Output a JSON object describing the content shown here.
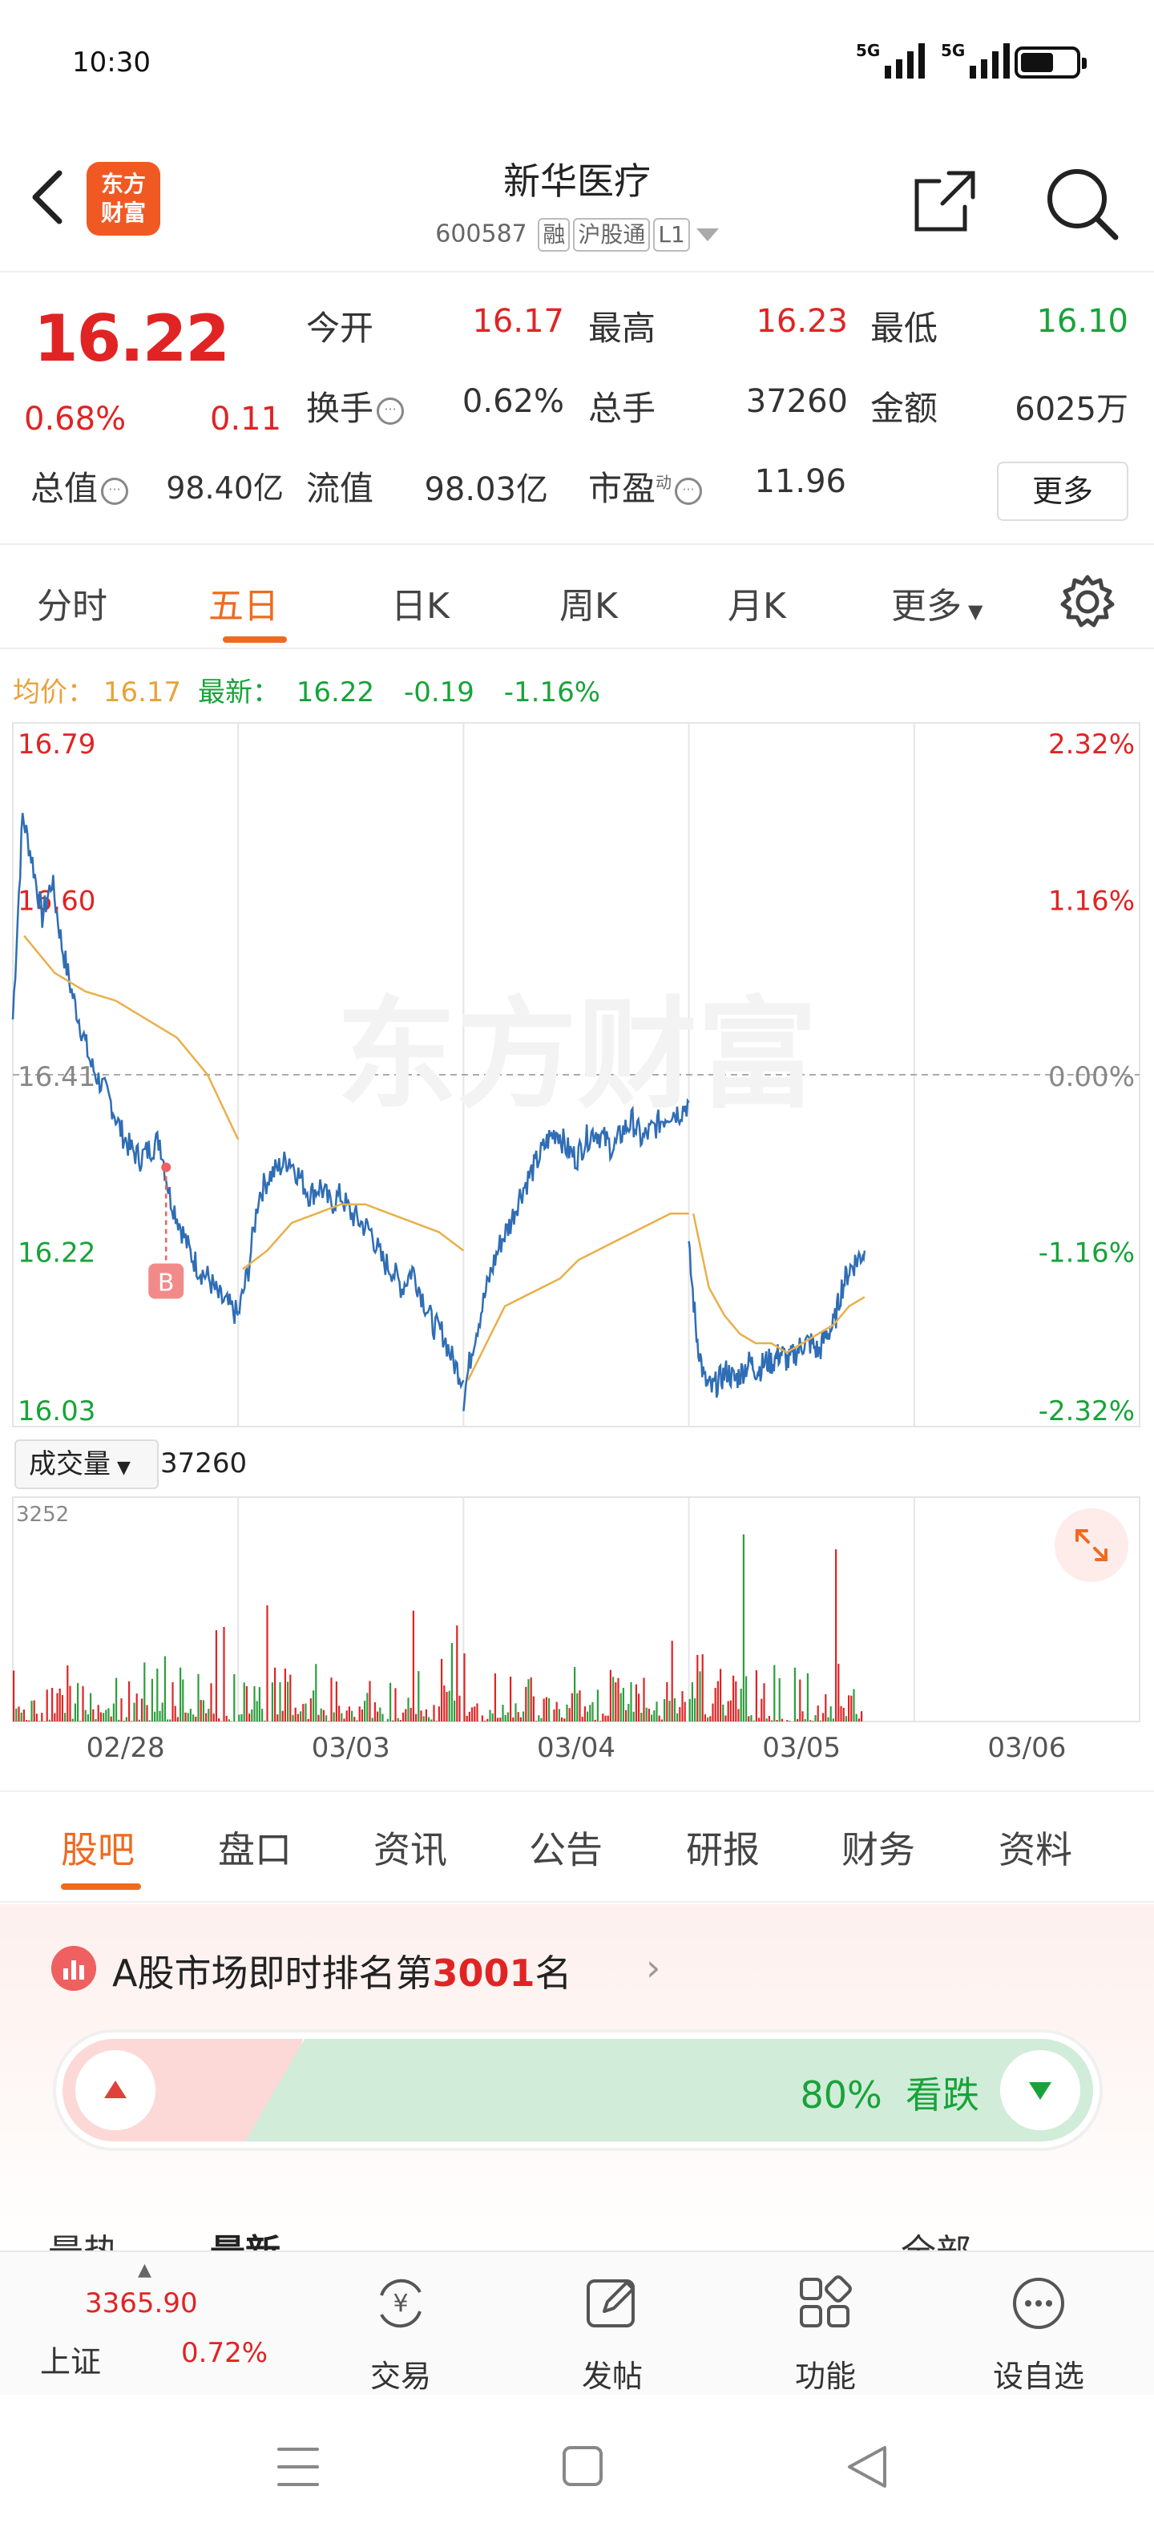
{
  "status": {
    "time": "10:30",
    "network1": "5G",
    "network2": "5G"
  },
  "header": {
    "logo_line1": "东方",
    "logo_line2": "财富",
    "title": "新华医疗",
    "code": "600587",
    "tags": [
      "融",
      "沪股通",
      "L1"
    ]
  },
  "quote": {
    "price": "16.22",
    "pct": "0.68%",
    "change": "0.11",
    "rows": [
      [
        {
          "label": "今开",
          "value": "16.17",
          "color": "red"
        },
        {
          "label": "最高",
          "value": "16.23",
          "color": "red"
        },
        {
          "label": "最低",
          "value": "16.10",
          "color": "green"
        }
      ],
      [
        {
          "label": "换手",
          "value": "0.62%",
          "color": "normal"
        },
        {
          "label": "总手",
          "value": "37260",
          "color": "normal"
        },
        {
          "label": "金额",
          "value": "6025万",
          "color": "normal"
        }
      ],
      [
        {
          "label": "总值",
          "value": "98.40亿",
          "color": "normal"
        },
        {
          "label": "流值",
          "value": "98.03亿",
          "color": "normal"
        },
        {
          "label": "市盈",
          "value": "11.96",
          "color": "normal",
          "sup": "动"
        }
      ]
    ],
    "more_button": "更多"
  },
  "chart_tabs": [
    "分时",
    "五日",
    "日K",
    "周K",
    "月K",
    "更多"
  ],
  "chart_tabs_active": 1,
  "info_line": {
    "avg_label": "均价：",
    "avg_value": "16.17",
    "latest_label": "最新：",
    "latest_value": "16.22",
    "change": "-0.19",
    "pct": "-1.16%"
  },
  "chart_data": {
    "type": "line",
    "title": "",
    "y_left_ticks": [
      "16.79",
      "16.60",
      "16.41",
      "16.22",
      "16.03"
    ],
    "y_right_ticks": [
      "2.32%",
      "1.16%",
      "0.00%",
      "-1.16%",
      "-2.32%"
    ],
    "ylim": [
      16.03,
      16.79
    ],
    "reference": 16.41,
    "x_labels": [
      "02/28",
      "03/03",
      "03/04",
      "03/05",
      "03/06"
    ],
    "watermark": "东方财富",
    "marker_label": "B",
    "series": [
      {
        "name": "",
        "color": "#2f6db5",
        "values": [
          [
            16.47,
            16.69,
            16.64,
            16.58,
            16.62,
            16.55,
            16.5,
            16.46,
            16.42,
            16.4,
            16.38,
            16.35,
            16.33,
            16.32,
            16.33,
            16.34,
            16.28,
            16.25,
            16.22,
            16.2,
            16.19,
            16.17,
            16.16,
            16.15
          ],
          [
            16.15,
            16.2,
            16.28,
            16.3,
            16.31,
            16.32,
            16.3,
            16.28,
            16.29,
            16.27,
            16.28,
            16.26,
            16.25,
            16.24,
            16.21,
            16.2,
            16.18,
            16.2,
            16.17,
            16.14,
            16.13,
            16.1,
            16.08
          ],
          [
            16.06,
            16.12,
            16.16,
            16.2,
            16.23,
            16.25,
            16.28,
            16.3,
            16.32,
            16.34,
            16.35,
            16.33,
            16.32,
            16.34,
            16.35,
            16.34,
            16.33,
            16.35,
            16.36,
            16.34,
            16.35,
            16.36,
            16.37,
            16.37,
            16.38
          ],
          [
            16.22,
            16.13,
            16.08,
            16.07,
            16.08,
            16.09,
            16.08,
            16.09,
            16.1,
            16.09,
            16.1,
            16.1,
            16.11,
            16.1,
            16.11,
            16.12,
            16.12,
            16.11,
            16.13,
            16.14,
            16.18,
            16.2,
            16.21,
            16.22
          ]
        ]
      },
      {
        "name": "",
        "color": "#e8b04a",
        "values": [
          [
            16.56,
            16.52,
            16.5,
            16.49,
            16.47,
            16.45,
            16.41,
            16.34
          ],
          [
            16.2,
            16.22,
            16.25,
            16.26,
            16.27,
            16.27,
            16.26,
            16.25,
            16.24,
            16.22
          ],
          [
            16.08,
            16.12,
            16.16,
            16.17,
            16.18,
            16.19,
            16.21,
            16.22,
            16.23,
            16.24,
            16.25,
            16.26,
            16.26
          ],
          [
            16.26,
            16.18,
            16.15,
            16.13,
            16.12,
            16.12,
            16.11,
            16.12,
            16.13,
            16.14,
            16.16,
            16.17
          ]
        ]
      }
    ],
    "volume": {
      "label": "成交量",
      "value": "37260",
      "max_label": "3252",
      "max": 3252
    }
  },
  "section_tabs": [
    "股吧",
    "盘口",
    "资讯",
    "公告",
    "研报",
    "财务",
    "资料"
  ],
  "rank": {
    "prefix": "A股市场即时排名",
    "num_prefix": "第",
    "number": "3001",
    "suffix": "名",
    "bear_pct": "80%",
    "bear_label": "看跌"
  },
  "feed_tabs": [
    "最热",
    "最新",
    "全部"
  ],
  "bottom_nav": {
    "index_value": "3365.90",
    "index_name": "上证",
    "index_pct": "0.72%",
    "items": [
      "交易",
      "发帖",
      "功能",
      "设自选"
    ]
  },
  "colors": {
    "up": "#e02424",
    "down": "#18a33a",
    "accent": "#ef6a1f"
  }
}
